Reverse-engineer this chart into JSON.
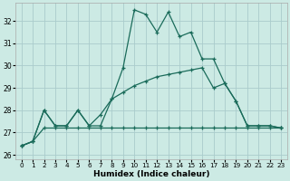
{
  "title": "",
  "xlabel": "Humidex (Indice chaleur)",
  "bg_color": "#cceae4",
  "grid_color": "#aacccc",
  "line_color": "#1a6b5a",
  "spine_color": "#aaaaaa",
  "xlim": [
    -0.5,
    23.5
  ],
  "ylim": [
    25.8,
    32.8
  ],
  "yticks": [
    26,
    27,
    28,
    29,
    30,
    31,
    32
  ],
  "xticks": [
    0,
    1,
    2,
    3,
    4,
    5,
    6,
    7,
    8,
    9,
    10,
    11,
    12,
    13,
    14,
    15,
    16,
    17,
    18,
    19,
    20,
    21,
    22,
    23
  ],
  "series1": [
    26.4,
    26.6,
    28.0,
    27.3,
    27.3,
    28.0,
    27.3,
    27.3,
    28.5,
    29.9,
    32.5,
    32.3,
    31.5,
    32.4,
    31.3,
    31.5,
    30.3,
    30.3,
    29.2,
    28.4,
    27.3,
    27.3,
    27.3,
    27.2
  ],
  "series2": [
    26.4,
    26.6,
    28.0,
    27.3,
    27.3,
    28.0,
    27.3,
    27.8,
    28.5,
    28.8,
    29.1,
    29.3,
    29.5,
    29.6,
    29.7,
    29.8,
    29.9,
    29.0,
    29.2,
    28.4,
    27.3,
    27.3,
    27.3,
    27.2
  ],
  "series3": [
    26.4,
    26.6,
    27.2,
    27.2,
    27.2,
    27.2,
    27.2,
    27.2,
    27.2,
    27.2,
    27.2,
    27.2,
    27.2,
    27.2,
    27.2,
    27.2,
    27.2,
    27.2,
    27.2,
    27.2,
    27.2,
    27.2,
    27.2,
    27.2
  ]
}
